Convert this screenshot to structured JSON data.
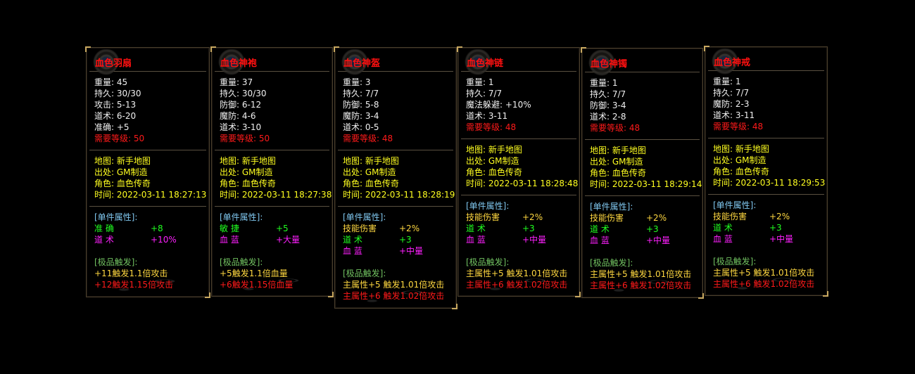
{
  "colors": {
    "title": "#ff1010",
    "stat": "#f0f0f0",
    "level": "#ff1a1a",
    "info": "#ffff20",
    "affix_header": "#80c8f0",
    "trigger_header": "#70c060",
    "green": "#20ff20",
    "magenta": "#ff20ff",
    "gold": "#ffd840"
  },
  "cards": [
    {
      "title": "血色羽扇",
      "stats": [
        {
          "label": "重量:",
          "value": "45"
        },
        {
          "label": "持久:",
          "value": "30/30"
        },
        {
          "label": "攻击:",
          "value": "5-13"
        },
        {
          "label": "道术:",
          "value": "6-20"
        },
        {
          "label": "准确:",
          "value": "+5"
        }
      ],
      "level": {
        "label": "需要等级:",
        "value": "50"
      },
      "info": [
        {
          "label": "地图:",
          "value": "新手地图"
        },
        {
          "label": "出处:",
          "value": "GM制造"
        },
        {
          "label": "角色:",
          "value": "血色传奇"
        },
        {
          "label": "时间:",
          "value": "2022-03-11 18:27:13"
        }
      ],
      "affix_header": "[单件属性]:",
      "affixes": [
        {
          "name": "准 确",
          "value": "+8",
          "color": "g"
        },
        {
          "name": "道 术",
          "value": "+10%",
          "color": "m"
        }
      ],
      "trigger_header": "[极品触发]:",
      "triggers": [
        {
          "text": "+11触发1.1倍攻击",
          "color": "c"
        },
        {
          "text": "+12触发1.15倍攻击",
          "color": "r"
        }
      ]
    },
    {
      "title": "血色神袍",
      "stats": [
        {
          "label": "重量:",
          "value": "37"
        },
        {
          "label": "持久:",
          "value": "30/30"
        },
        {
          "label": "防御:",
          "value": "6-12"
        },
        {
          "label": "魔防:",
          "value": "4-6"
        },
        {
          "label": "道术:",
          "value": "3-10"
        }
      ],
      "level": {
        "label": "需要等级:",
        "value": "50"
      },
      "info": [
        {
          "label": "地图:",
          "value": "新手地图"
        },
        {
          "label": "出处:",
          "value": "GM制造"
        },
        {
          "label": "角色:",
          "value": "血色传奇"
        },
        {
          "label": "时间:",
          "value": "2022-03-11 18:27:38"
        }
      ],
      "affix_header": "[单件属性]:",
      "affixes": [
        {
          "name": "敏 捷",
          "value": "+5",
          "color": "g"
        },
        {
          "name": "血 蓝",
          "value": "+大量",
          "color": "m"
        }
      ],
      "trigger_header": "[极品触发]:",
      "triggers": [
        {
          "text": "+5触发1.1倍血量",
          "color": "c"
        },
        {
          "text": "+6触发1.15倍血量",
          "color": "r"
        }
      ]
    },
    {
      "title": "血色神盔",
      "stats": [
        {
          "label": "重量:",
          "value": "3"
        },
        {
          "label": "持久:",
          "value": "7/7"
        },
        {
          "label": "防御:",
          "value": "5-8"
        },
        {
          "label": "魔防:",
          "value": "3-4"
        },
        {
          "label": "道术:",
          "value": "0-5"
        }
      ],
      "level": {
        "label": "需要等级:",
        "value": "48"
      },
      "info": [
        {
          "label": "地图:",
          "value": "新手地图"
        },
        {
          "label": "出处:",
          "value": "GM制造"
        },
        {
          "label": "角色:",
          "value": "血色传奇"
        },
        {
          "label": "时间:",
          "value": "2022-03-11 18:28:19"
        }
      ],
      "affix_header": "[单件属性]:",
      "affixes": [
        {
          "name": "技能伤害",
          "value": "+2%",
          "color": "c"
        },
        {
          "name": "道 术",
          "value": "+3",
          "color": "g"
        },
        {
          "name": "血 蓝",
          "value": "+中量",
          "color": "m"
        }
      ],
      "trigger_header": "[极品触发]:",
      "triggers": [
        {
          "text": "主属性+5 触发1.01倍攻击",
          "color": "c"
        },
        {
          "text": "主属性+6 触发1.02倍攻击",
          "color": "r"
        }
      ]
    },
    {
      "title": "血色神链",
      "stats": [
        {
          "label": "重量:",
          "value": "1"
        },
        {
          "label": "持久:",
          "value": "7/7"
        },
        {
          "label": "魔法躲避:",
          "value": "+10%"
        },
        {
          "label": "道术:",
          "value": "3-11"
        }
      ],
      "level": {
        "label": "需要等级:",
        "value": "48"
      },
      "info": [
        {
          "label": "地图:",
          "value": "新手地图"
        },
        {
          "label": "出处:",
          "value": "GM制造"
        },
        {
          "label": "角色:",
          "value": "血色传奇"
        },
        {
          "label": "时间:",
          "value": "2022-03-11 18:28:48"
        }
      ],
      "affix_header": "[单件属性]:",
      "affixes": [
        {
          "name": "技能伤害",
          "value": "+2%",
          "color": "c"
        },
        {
          "name": "道 术",
          "value": "+3",
          "color": "g"
        },
        {
          "name": "血 蓝",
          "value": "+中量",
          "color": "m"
        }
      ],
      "trigger_header": "[极品触发]:",
      "triggers": [
        {
          "text": "主属性+5 触发1.01倍攻击",
          "color": "c"
        },
        {
          "text": "主属性+6 触发1.02倍攻击",
          "color": "r"
        }
      ]
    },
    {
      "title": "血色神镯",
      "stats": [
        {
          "label": "重量:",
          "value": "1"
        },
        {
          "label": "持久:",
          "value": "7/7"
        },
        {
          "label": "防御:",
          "value": "3-4"
        },
        {
          "label": "道术:",
          "value": "2-8"
        }
      ],
      "level": {
        "label": "需要等级:",
        "value": "48"
      },
      "info": [
        {
          "label": "地图:",
          "value": "新手地图"
        },
        {
          "label": "出处:",
          "value": "GM制造"
        },
        {
          "label": "角色:",
          "value": "血色传奇"
        },
        {
          "label": "时间:",
          "value": "2022-03-11 18:29:14"
        }
      ],
      "affix_header": "[单件属性]:",
      "affixes": [
        {
          "name": "技能伤害",
          "value": "+2%",
          "color": "c"
        },
        {
          "name": "道 术",
          "value": "+3",
          "color": "g"
        },
        {
          "name": "血 蓝",
          "value": "+中量",
          "color": "m"
        }
      ],
      "trigger_header": "[极品触发]:",
      "triggers": [
        {
          "text": "主属性+5 触发1.01倍攻击",
          "color": "c"
        },
        {
          "text": "主属性+6 触发1.02倍攻击",
          "color": "r"
        }
      ]
    },
    {
      "title": "血色神戒",
      "stats": [
        {
          "label": "重量:",
          "value": "1"
        },
        {
          "label": "持久:",
          "value": "7/7"
        },
        {
          "label": "魔防:",
          "value": "2-3"
        },
        {
          "label": "道术:",
          "value": "3-11"
        }
      ],
      "level": {
        "label": "需要等级:",
        "value": "48"
      },
      "info": [
        {
          "label": "地图:",
          "value": "新手地图"
        },
        {
          "label": "出处:",
          "value": "GM制造"
        },
        {
          "label": "角色:",
          "value": "血色传奇"
        },
        {
          "label": "时间:",
          "value": "2022-03-11 18:29:53"
        }
      ],
      "affix_header": "[单件属性]:",
      "affixes": [
        {
          "name": "技能伤害",
          "value": "+2%",
          "color": "c"
        },
        {
          "name": "道 术",
          "value": "+3",
          "color": "g"
        },
        {
          "name": "血 蓝",
          "value": "+中量",
          "color": "m"
        }
      ],
      "trigger_header": "[极品触发]:",
      "triggers": [
        {
          "text": "主属性+5 触发1.01倍攻击",
          "color": "c"
        },
        {
          "text": "主属性+6 触发1.02倍攻击",
          "color": "r"
        }
      ]
    }
  ]
}
